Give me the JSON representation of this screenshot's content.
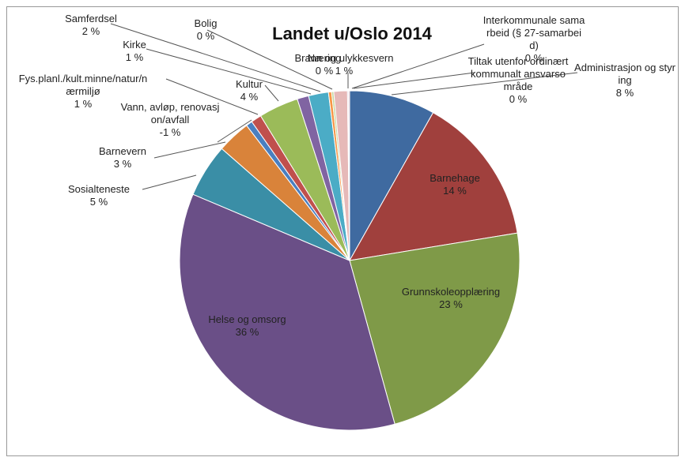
{
  "chart_data": {
    "type": "pie",
    "title": "Landet u/Oslo 2014",
    "categories": [
      "Administrasjon og styring",
      "Barnehage",
      "Grunnskoleopplæring",
      "Helse og omsorg",
      "Sosialteneste",
      "Barnevern",
      "Vann, avløp, renovasjon/avfall",
      "Fys.planl./kult.minne/natur/nærmiljø",
      "Kultur",
      "Kirke",
      "Samferdsel",
      "Bolig",
      "Næring",
      "Brann og ulykkesvern",
      "Interkommunale samarbeid (§ 27-samarbeid)",
      "Tiltak utenfor ordinært kommunalt ansvarsområde"
    ],
    "values": [
      8.2,
      14.3,
      23.4,
      35.8,
      5.1,
      3.2,
      -0.6,
      1.0,
      3.8,
      1.1,
      1.9,
      0.3,
      0.2,
      1.3,
      0.1,
      0.1
    ],
    "value_labels": [
      "8 %",
      "14 %",
      "23 %",
      "36 %",
      "5 %",
      "3 %",
      "-1 %",
      "1 %",
      "4 %",
      "1 %",
      "2 %",
      "0 %",
      "0 %",
      "1 %",
      "0 %",
      "0 %"
    ],
    "colors": [
      "#3f6aa0",
      "#a0403d",
      "#7f9a48",
      "#6a4f87",
      "#3a8ea6",
      "#d9833a",
      "#4a7fc0",
      "#c0504d",
      "#9bbb59",
      "#8064a2",
      "#4bacc6",
      "#f79646",
      "#c3d69b",
      "#e6b9b8",
      "#b3a2c7",
      "#d99694"
    ]
  }
}
